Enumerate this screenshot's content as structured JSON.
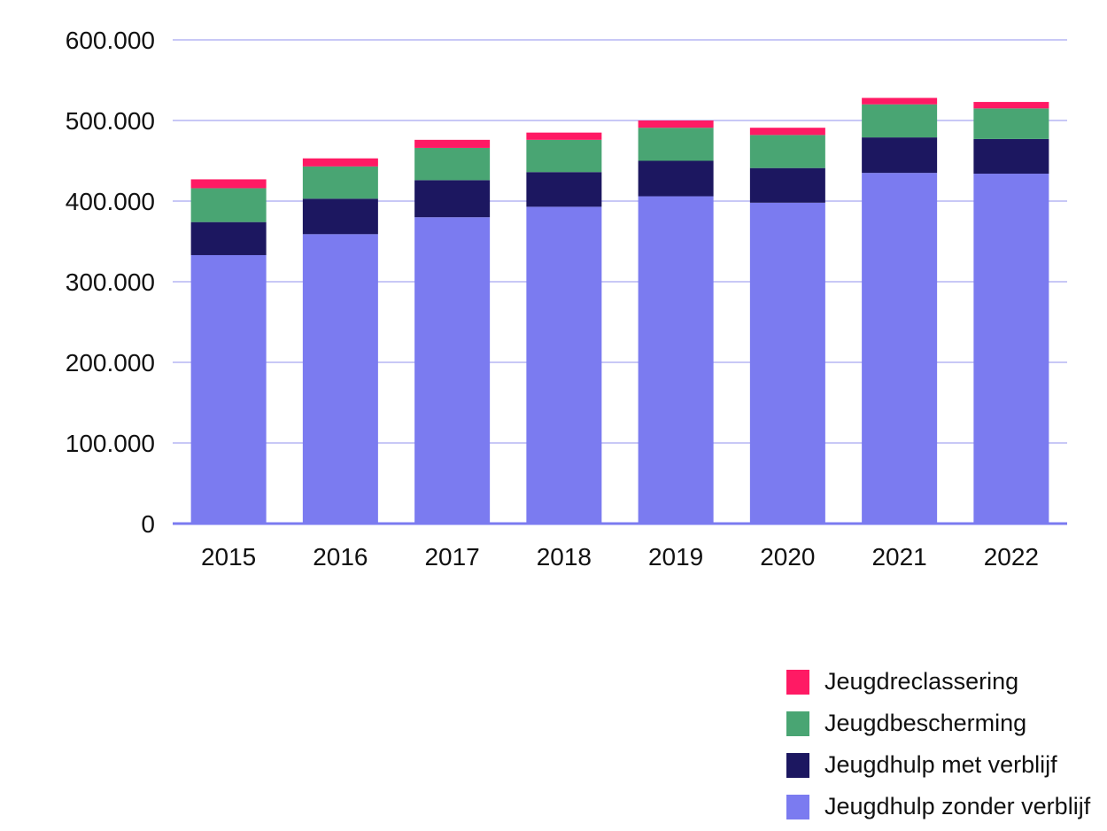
{
  "chart_data": {
    "type": "bar",
    "stacked": true,
    "categories": [
      "2015",
      "2016",
      "2017",
      "2018",
      "2019",
      "2020",
      "2021",
      "2022"
    ],
    "series": [
      {
        "name": "Jeugdhulp zonder verblijf",
        "color": "#7b7bf0",
        "values": [
          333000,
          359000,
          380000,
          393000,
          406000,
          398000,
          435000,
          434000
        ]
      },
      {
        "name": "Jeugdhulp met verblijf",
        "color": "#1c1760",
        "values": [
          41000,
          44000,
          46000,
          43000,
          44000,
          43000,
          44000,
          43000
        ]
      },
      {
        "name": "Jeugdbescherming",
        "color": "#49a573",
        "values": [
          42000,
          40000,
          40000,
          40000,
          41000,
          41000,
          41000,
          38000
        ]
      },
      {
        "name": "Jeugdreclassering",
        "color": "#ff1a64",
        "values": [
          11000,
          10000,
          10000,
          9000,
          9000,
          9000,
          8000,
          8000
        ]
      }
    ],
    "yticks": [
      "0",
      "100.000",
      "200.000",
      "300.000",
      "400.000",
      "500.000",
      "600.000"
    ],
    "ylim": [
      0,
      600000
    ],
    "grid": true,
    "grid_color": "#a8a6f0",
    "legend_position": "bottom-right",
    "legend_order": [
      3,
      2,
      1,
      0
    ]
  }
}
